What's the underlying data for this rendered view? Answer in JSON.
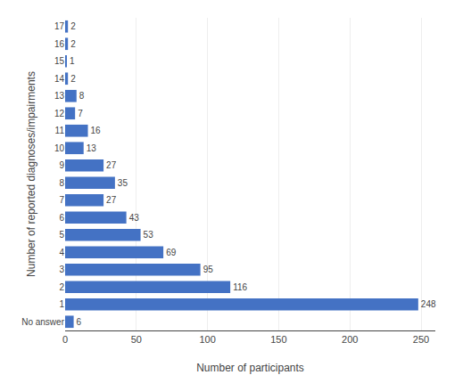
{
  "chart_data": {
    "type": "bar",
    "orientation": "horizontal",
    "categories": [
      "17",
      "16",
      "15",
      "14",
      "13",
      "12",
      "11",
      "10",
      "9",
      "8",
      "7",
      "6",
      "5",
      "4",
      "3",
      "2",
      "1",
      "No answer"
    ],
    "values": [
      2,
      2,
      1,
      2,
      8,
      7,
      16,
      13,
      27,
      35,
      27,
      43,
      53,
      69,
      95,
      116,
      248,
      6
    ],
    "color": "#4472C4",
    "xlabel": "Number of participants",
    "ylabel": "Number of reported diagnoses/impairments",
    "xlim": [
      0,
      260
    ],
    "xticks": [
      0,
      50,
      100,
      150,
      200,
      250
    ],
    "grid": true,
    "data_labels": true
  }
}
